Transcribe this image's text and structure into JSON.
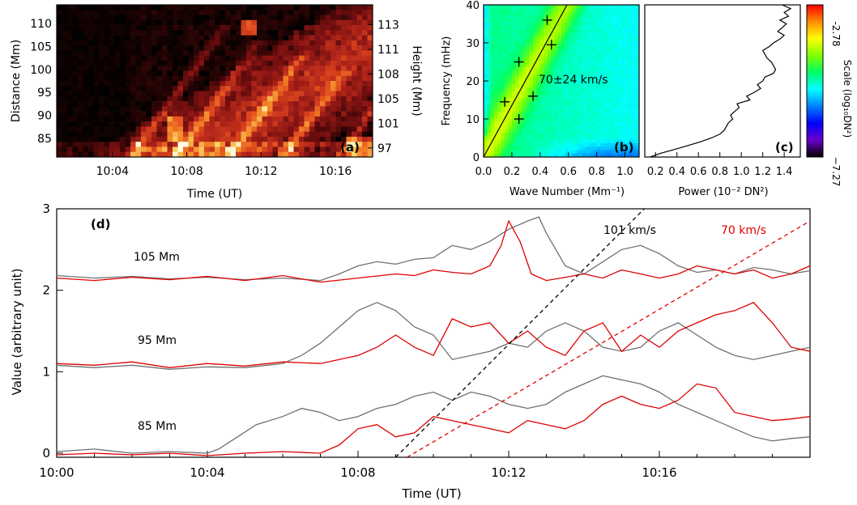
{
  "chart_data": [
    {
      "panel": "a",
      "type": "heatmap",
      "label": "(a)",
      "xlabel": "Time (UT)",
      "ylabel": "Distance (Mm)",
      "y2label": "Height (Mm)",
      "xticks": [
        "10:04",
        "10:08",
        "10:12",
        "10:16"
      ],
      "yticks": [
        "85",
        "90",
        "95",
        "100",
        "105",
        "110"
      ],
      "y2ticks": [
        "97",
        "101",
        "105",
        "108",
        "111",
        "113"
      ],
      "xlim": [
        "10:01",
        "10:18"
      ],
      "ylim": [
        81,
        114
      ],
      "colormap": [
        "#000000",
        "#3a0606",
        "#7a1010",
        "#b3261a",
        "#e04a1e",
        "#f48a2a",
        "#fbd46a",
        "#fffbe0"
      ]
    },
    {
      "panel": "b",
      "type": "heatmap",
      "label": "(b)",
      "xlabel": "Wave Number (Mm⁻¹)",
      "ylabel": "Frequency (mHz)",
      "xticks": [
        "0.0",
        "0.2",
        "0.4",
        "0.6",
        "0.8",
        "1.0"
      ],
      "yticks": [
        "0",
        "10",
        "20",
        "30",
        "40"
      ],
      "xlim": [
        0,
        1.1
      ],
      "ylim": [
        0,
        40
      ],
      "annotation": "70±24 km/s",
      "ridge_points": [
        {
          "k": 0.15,
          "f": 14.5
        },
        {
          "k": 0.25,
          "f": 10
        },
        {
          "k": 0.25,
          "f": 25
        },
        {
          "k": 0.35,
          "f": 16
        },
        {
          "k": 0.45,
          "f": 36
        },
        {
          "k": 0.48,
          "f": 29.5
        }
      ],
      "fit_line": {
        "k": [
          0,
          0.59
        ],
        "f": [
          0,
          40
        ]
      }
    },
    {
      "panel": "c",
      "type": "line",
      "label": "(c)",
      "xlabel": "Power (10⁻² DN²)",
      "xticks": [
        "0.2",
        "0.4",
        "0.6",
        "0.8",
        "1.0",
        "1.2",
        "1.4"
      ],
      "xlim": [
        0.1,
        1.55
      ],
      "ylim": [
        0,
        40
      ],
      "power": [
        0.15,
        0.25,
        0.38,
        0.5,
        0.62,
        0.72,
        0.8,
        0.84,
        0.86,
        0.88,
        0.92,
        0.9,
        0.94,
        0.98,
        0.96,
        1.08,
        1.05,
        1.12,
        1.18,
        1.15,
        1.2,
        1.22,
        1.3,
        1.32,
        1.3,
        1.28,
        1.24,
        1.22,
        1.2,
        1.26,
        1.3,
        1.36,
        1.4,
        1.34,
        1.38,
        1.42,
        1.36,
        1.44,
        1.4,
        1.46,
        1.38
      ],
      "freq": [
        0,
        1,
        2,
        3,
        4,
        5,
        6,
        7,
        8,
        9,
        10,
        11,
        12,
        13,
        14,
        15,
        16,
        17,
        18,
        19,
        20,
        21,
        22,
        23,
        24,
        25,
        26,
        27,
        28,
        29,
        30,
        31,
        32,
        33,
        34,
        35,
        36,
        37,
        38,
        39,
        40
      ]
    },
    {
      "panel": "colorbar",
      "label": "Scale (log₁₀DN²)",
      "max_label": "-2.78",
      "min_label": "−7.27",
      "colors": [
        "#ff0000",
        "#ff8c00",
        "#ffff00",
        "#7fff00",
        "#00ff66",
        "#00ffff",
        "#0080ff",
        "#0000ff",
        "#6a00c8",
        "#000000"
      ]
    },
    {
      "panel": "d",
      "type": "line",
      "label": "(d)",
      "xlabel": "Time (UT)",
      "ylabel": "Value (arbitrary unit)",
      "xticks": [
        "10:00",
        "10:04",
        "10:08",
        "10:12",
        "10:16"
      ],
      "yticks": [
        "0",
        "1",
        "2",
        "3"
      ],
      "xlim": [
        0,
        20
      ],
      "ylim": [
        -0.05,
        3
      ],
      "row_labels": [
        "105 Mm",
        "95 Mm",
        "85 Mm"
      ],
      "speed_labels": [
        {
          "text": "101 km/s",
          "color": "#000000"
        },
        {
          "text": "70 km/s",
          "color": "#e00000"
        }
      ],
      "speed_lines": [
        {
          "color": "#000000",
          "t": [
            9.0,
            15.6
          ],
          "y": [
            -0.05,
            3.0
          ]
        },
        {
          "color": "#e00000",
          "t": [
            9.3,
            20.0
          ],
          "y": [
            -0.05,
            2.85
          ]
        }
      ],
      "series": [
        {
          "color": "#707070",
          "t": [
            0,
            1,
            2,
            3,
            4,
            5,
            6,
            7,
            7.5,
            8,
            8.5,
            9,
            9.5,
            10,
            10.5,
            11,
            11.5,
            12,
            12.5,
            12.8,
            13,
            13.5,
            14,
            14.5,
            15,
            15.5,
            16,
            16.5,
            17,
            17.5,
            18,
            18.5,
            19,
            19.5,
            20
          ],
          "y": [
            2.18,
            2.15,
            2.17,
            2.14,
            2.16,
            2.13,
            2.15,
            2.12,
            2.2,
            2.3,
            2.35,
            2.32,
            2.38,
            2.4,
            2.55,
            2.5,
            2.6,
            2.75,
            2.85,
            2.9,
            2.7,
            2.3,
            2.2,
            2.35,
            2.5,
            2.55,
            2.45,
            2.3,
            2.22,
            2.25,
            2.2,
            2.28,
            2.25,
            2.2,
            2.24
          ]
        },
        {
          "color": "#e00000",
          "t": [
            0,
            1,
            2,
            3,
            4,
            5,
            6,
            7,
            8,
            9,
            9.5,
            10,
            10.5,
            11,
            11.5,
            11.8,
            12,
            12.3,
            12.6,
            13,
            13.5,
            14,
            14.5,
            15,
            15.5,
            16,
            16.5,
            17,
            17.5,
            18,
            18.5,
            19,
            19.5,
            20
          ],
          "y": [
            2.15,
            2.12,
            2.16,
            2.13,
            2.17,
            2.12,
            2.18,
            2.1,
            2.15,
            2.2,
            2.18,
            2.25,
            2.22,
            2.2,
            2.3,
            2.55,
            2.85,
            2.6,
            2.2,
            2.12,
            2.16,
            2.2,
            2.15,
            2.25,
            2.2,
            2.15,
            2.2,
            2.3,
            2.25,
            2.2,
            2.25,
            2.15,
            2.2,
            2.3
          ]
        },
        {
          "color": "#707070",
          "t": [
            0,
            1,
            2,
            3,
            4,
            5,
            6,
            6.5,
            7,
            7.5,
            8,
            8.5,
            9,
            9.5,
            10,
            10.5,
            11,
            11.5,
            12,
            12.5,
            13,
            13.5,
            14,
            14.5,
            15,
            15.5,
            16,
            16.5,
            17,
            17.5,
            18,
            18.5,
            19,
            19.5,
            20
          ],
          "y": [
            1.08,
            1.05,
            1.08,
            1.03,
            1.06,
            1.05,
            1.1,
            1.2,
            1.35,
            1.55,
            1.75,
            1.85,
            1.75,
            1.55,
            1.45,
            1.15,
            1.2,
            1.25,
            1.35,
            1.3,
            1.5,
            1.6,
            1.5,
            1.3,
            1.25,
            1.3,
            1.5,
            1.6,
            1.45,
            1.3,
            1.2,
            1.15,
            1.2,
            1.25,
            1.3
          ]
        },
        {
          "color": "#e00000",
          "t": [
            0,
            1,
            2,
            3,
            4,
            5,
            6,
            7,
            8,
            8.5,
            9,
            9.5,
            10,
            10.5,
            11,
            11.5,
            12,
            12.5,
            13,
            13.5,
            14,
            14.5,
            15,
            15.5,
            16,
            16.5,
            17,
            17.5,
            18,
            18.5,
            19,
            19.5,
            20
          ],
          "y": [
            1.1,
            1.08,
            1.12,
            1.05,
            1.1,
            1.07,
            1.12,
            1.1,
            1.2,
            1.3,
            1.45,
            1.3,
            1.2,
            1.65,
            1.55,
            1.6,
            1.35,
            1.5,
            1.3,
            1.2,
            1.5,
            1.6,
            1.25,
            1.45,
            1.3,
            1.5,
            1.6,
            1.7,
            1.75,
            1.85,
            1.6,
            1.3,
            1.25
          ]
        },
        {
          "color": "#707070",
          "t": [
            0,
            1,
            2,
            3,
            4,
            4.3,
            4.8,
            5.3,
            6,
            6.5,
            7,
            7.5,
            8,
            8.5,
            9,
            9.5,
            10,
            10.5,
            11,
            11.5,
            12,
            12.5,
            13,
            13.5,
            14,
            14.5,
            15,
            15.5,
            16,
            16.5,
            17,
            17.5,
            18,
            18.5,
            19,
            19.5,
            20
          ],
          "y": [
            0.02,
            0.05,
            0.0,
            0.02,
            0.0,
            0.05,
            0.2,
            0.35,
            0.45,
            0.55,
            0.5,
            0.4,
            0.45,
            0.55,
            0.6,
            0.7,
            0.75,
            0.65,
            0.75,
            0.7,
            0.6,
            0.55,
            0.6,
            0.75,
            0.85,
            0.95,
            0.9,
            0.85,
            0.75,
            0.6,
            0.5,
            0.4,
            0.3,
            0.2,
            0.15,
            0.18,
            0.2
          ]
        },
        {
          "color": "#e00000",
          "t": [
            0,
            1,
            2,
            3,
            4,
            5,
            6,
            7,
            7.5,
            8,
            8.5,
            9,
            9.5,
            10,
            10.5,
            11,
            11.5,
            12,
            12.5,
            13,
            13.5,
            14,
            14.5,
            15,
            15.5,
            16,
            16.5,
            17,
            17.5,
            18,
            18.5,
            19,
            19.5,
            20
          ],
          "y": [
            -0.02,
            0.0,
            -0.02,
            0.0,
            -0.03,
            0.0,
            0.02,
            0.0,
            0.1,
            0.3,
            0.35,
            0.2,
            0.25,
            0.45,
            0.4,
            0.35,
            0.3,
            0.25,
            0.4,
            0.35,
            0.3,
            0.4,
            0.6,
            0.7,
            0.6,
            0.55,
            0.65,
            0.85,
            0.8,
            0.5,
            0.45,
            0.4,
            0.42,
            0.45
          ]
        }
      ]
    }
  ]
}
